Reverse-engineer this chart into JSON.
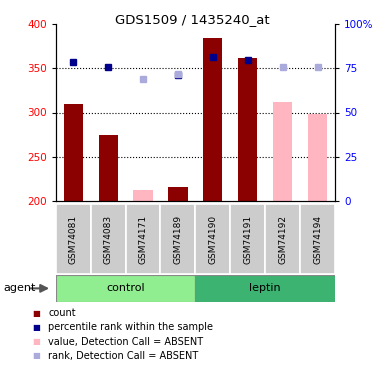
{
  "title": "GDS1509 / 1435240_at",
  "samples": [
    "GSM74081",
    "GSM74083",
    "GSM74171",
    "GSM74189",
    "GSM74190",
    "GSM74191",
    "GSM74192",
    "GSM74194"
  ],
  "bar_values": [
    310,
    275,
    null,
    215,
    385,
    362,
    null,
    null
  ],
  "absent_bar_values": [
    null,
    null,
    212,
    null,
    null,
    null,
    312,
    298
  ],
  "blue_square_values": [
    357,
    352,
    null,
    343,
    363,
    360,
    null,
    null
  ],
  "blue_square_absent": [
    null,
    null,
    338,
    344,
    null,
    null,
    352,
    352
  ],
  "bar_color_present": "#8B0000",
  "bar_color_absent": "#FFB6C1",
  "blue_color_present": "#00008B",
  "blue_color_absent": "#AAAADD",
  "ymin": 200,
  "ymax": 400,
  "yticks": [
    200,
    250,
    300,
    350,
    400
  ],
  "right_yticks": [
    0,
    25,
    50,
    75,
    100
  ],
  "dotted_lines": [
    250,
    300,
    350
  ],
  "control_color": "#90EE90",
  "leptin_color": "#3CB371",
  "group_label": "agent",
  "legend_labels": [
    "count",
    "percentile rank within the sample",
    "value, Detection Call = ABSENT",
    "rank, Detection Call = ABSENT"
  ],
  "legend_colors": [
    "#8B0000",
    "#00008B",
    "#FFB6C1",
    "#AAAADD"
  ],
  "figsize": [
    3.85,
    3.75
  ],
  "dpi": 100
}
